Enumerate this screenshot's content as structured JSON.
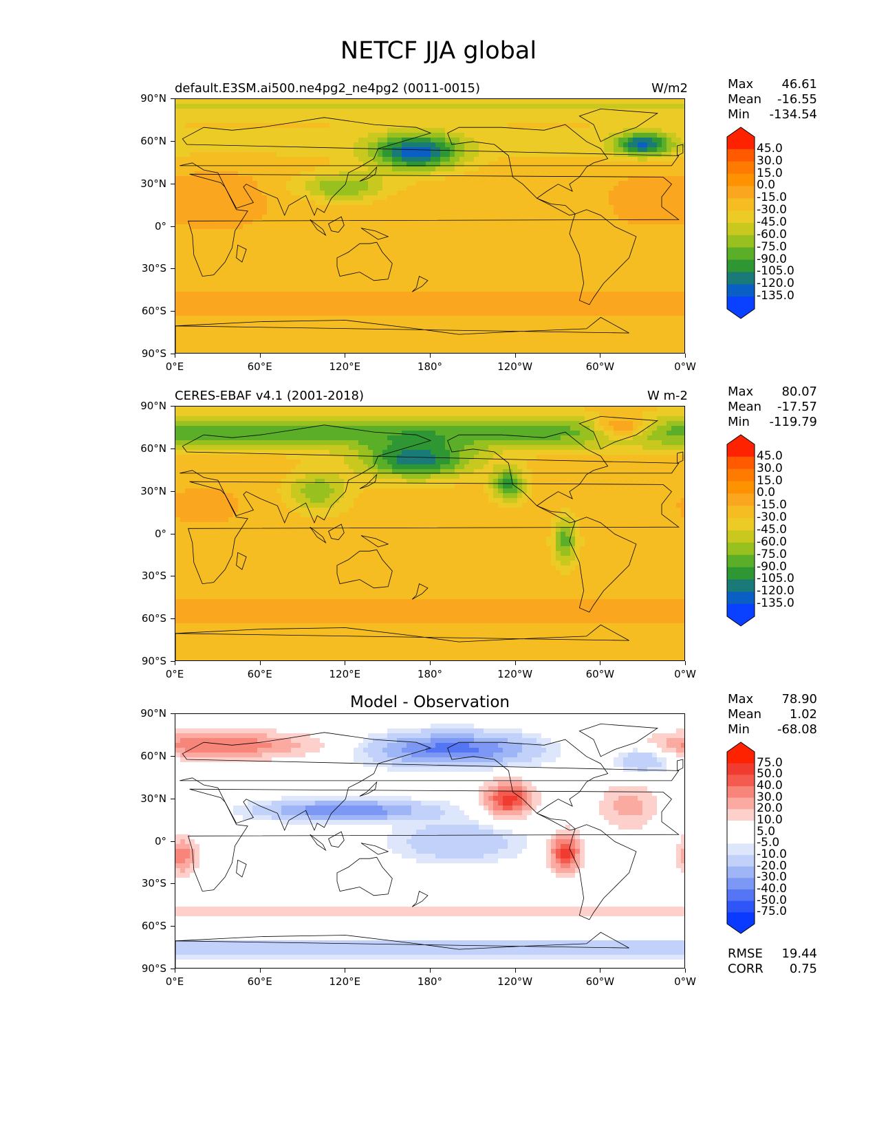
{
  "title": "NETCF JJA global",
  "axes": {
    "y_ticks": [
      "90°N",
      "60°N",
      "30°N",
      "0°",
      "30°S",
      "60°S",
      "90°S"
    ],
    "x_ticks": [
      "0°E",
      "60°E",
      "120°E",
      "180°",
      "120°W",
      "60°W",
      "0°W"
    ]
  },
  "panels": [
    {
      "id": "model",
      "left_title": "default.E3SM.ai500.ne4pg2_ne4pg2 (0011-0015)",
      "right_title": "W/m2",
      "center_title": "",
      "stats": [
        {
          "label": "Max",
          "value": "46.61"
        },
        {
          "label": "Mean",
          "value": "-16.55"
        },
        {
          "label": "Min",
          "value": "-134.54"
        }
      ],
      "colorbar_labels": [
        "45.0",
        "30.0",
        "15.0",
        "0.0",
        "-15.0",
        "-30.0",
        "-45.0",
        "-60.0",
        "-75.0",
        "-90.0",
        "-105.0",
        "-120.0",
        "-135.0"
      ],
      "colorbar_colors": [
        "#ff2200",
        "#ff5a00",
        "#ff7a00",
        "#ff9200",
        "#faa61e",
        "#f5bd22",
        "#eccb27",
        "#c8c81e",
        "#98c01e",
        "#5aae28",
        "#2e9632",
        "#1a7a78",
        "#0a5fc4",
        "#0a40ff"
      ],
      "extra": []
    },
    {
      "id": "obs",
      "left_title": "CERES-EBAF v4.1 (2001-2018)",
      "right_title": "W m-2",
      "center_title": "",
      "stats": [
        {
          "label": "Max",
          "value": "80.07"
        },
        {
          "label": "Mean",
          "value": "-17.57"
        },
        {
          "label": "Min",
          "value": "-119.79"
        }
      ],
      "colorbar_labels": [
        "45.0",
        "30.0",
        "15.0",
        "0.0",
        "-15.0",
        "-30.0",
        "-45.0",
        "-60.0",
        "-75.0",
        "-90.0",
        "-105.0",
        "-120.0",
        "-135.0"
      ],
      "colorbar_colors": [
        "#ff2200",
        "#ff5a00",
        "#ff7a00",
        "#ff9200",
        "#faa61e",
        "#f5bd22",
        "#eccb27",
        "#c8c81e",
        "#98c01e",
        "#5aae28",
        "#2e9632",
        "#1a7a78",
        "#0a5fc4",
        "#0a40ff"
      ],
      "extra": []
    },
    {
      "id": "diff",
      "left_title": "",
      "right_title": "",
      "center_title": "Model - Observation",
      "stats": [
        {
          "label": "Max",
          "value": "78.90"
        },
        {
          "label": "Mean",
          "value": "1.02"
        },
        {
          "label": "Min",
          "value": "-68.08"
        }
      ],
      "colorbar_labels": [
        "75.0",
        "50.0",
        "40.0",
        "30.0",
        "20.0",
        "10.0",
        "5.0",
        "-5.0",
        "-10.0",
        "-20.0",
        "-30.0",
        "-40.0",
        "-50.0",
        "-75.0"
      ],
      "colorbar_colors": [
        "#ff2200",
        "#f03c30",
        "#f45a4e",
        "#f8857a",
        "#fbaaa2",
        "#fdd0cb",
        "#ffffff",
        "#ffffff",
        "#dde6fb",
        "#c1d1f9",
        "#9fb6f6",
        "#7c98f4",
        "#5576f4",
        "#2e55f8",
        "#0a3aff"
      ],
      "extra": [
        {
          "label": "RMSE",
          "value": "19.44"
        },
        {
          "label": "CORR",
          "value": "0.75"
        }
      ]
    }
  ]
}
